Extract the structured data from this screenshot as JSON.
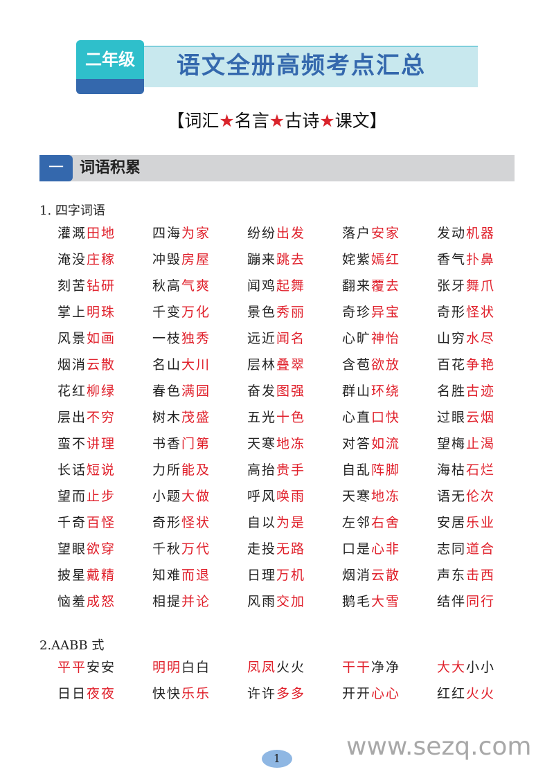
{
  "header": {
    "grade": "二年级",
    "title": "语文全册高频考点汇总",
    "subtitle_parts": [
      "【词汇",
      "★",
      "名言",
      "★",
      "古诗",
      "★",
      "课文】"
    ],
    "colors": {
      "teal": "#2fbfcb",
      "blue": "#3468ad",
      "red": "#d9232b"
    }
  },
  "section": {
    "number": "一",
    "title": "词语积累"
  },
  "four_char": {
    "heading": "1. 四字词语",
    "words": [
      [
        [
          "灌溉",
          "田地"
        ],
        [
          "四海",
          "为家"
        ],
        [
          "纷纷",
          "出发"
        ],
        [
          "落户",
          "安家"
        ],
        [
          "发动",
          "机器"
        ]
      ],
      [
        [
          "淹没",
          "庄稼"
        ],
        [
          "冲毁",
          "房屋"
        ],
        [
          "蹦来",
          "跳去"
        ],
        [
          "姹紫",
          "嫣红"
        ],
        [
          "香气",
          "扑鼻"
        ]
      ],
      [
        [
          "刻苦",
          "钻研"
        ],
        [
          "秋高",
          "气爽"
        ],
        [
          "闻鸡",
          "起舞"
        ],
        [
          "翻来",
          "覆去"
        ],
        [
          "张牙",
          "舞爪"
        ]
      ],
      [
        [
          "掌上",
          "明珠"
        ],
        [
          "千变",
          "万化"
        ],
        [
          "景色",
          "秀丽"
        ],
        [
          "奇珍",
          "异宝"
        ],
        [
          "奇形",
          "怪状"
        ]
      ],
      [
        [
          "风景",
          "如画"
        ],
        [
          "一枝",
          "独秀"
        ],
        [
          "远近",
          "闻名"
        ],
        [
          "心旷",
          "神怡"
        ],
        [
          "山穷",
          "水尽"
        ]
      ],
      [
        [
          "烟消",
          "云散"
        ],
        [
          "名山",
          "大川"
        ],
        [
          "层林",
          "叠翠"
        ],
        [
          "含苞",
          "欲放"
        ],
        [
          "百花",
          "争艳"
        ]
      ],
      [
        [
          "花红",
          "柳绿"
        ],
        [
          "春色",
          "满园"
        ],
        [
          "奋发",
          "图强"
        ],
        [
          "群山",
          "环绕"
        ],
        [
          "名胜",
          "古迹"
        ]
      ],
      [
        [
          "层出",
          "不穷"
        ],
        [
          "树木",
          "茂盛"
        ],
        [
          "五光",
          "十色"
        ],
        [
          "心直",
          "口快"
        ],
        [
          "过眼",
          "云烟"
        ]
      ],
      [
        [
          "蛮不",
          "讲理"
        ],
        [
          "书香",
          "门第"
        ],
        [
          "天寒",
          "地冻"
        ],
        [
          "对答",
          "如流"
        ],
        [
          "望梅",
          "止渴"
        ]
      ],
      [
        [
          "长话",
          "短说"
        ],
        [
          "力所",
          "能及"
        ],
        [
          "高抬",
          "贵手"
        ],
        [
          "自乱",
          "阵脚"
        ],
        [
          "海枯",
          "石烂"
        ]
      ],
      [
        [
          "望而",
          "止步"
        ],
        [
          "小题",
          "大做"
        ],
        [
          "呼风",
          "唤雨"
        ],
        [
          "天寒",
          "地冻"
        ],
        [
          "语无",
          "伦次"
        ]
      ],
      [
        [
          "千奇",
          "百怪"
        ],
        [
          "奇形",
          "怪状"
        ],
        [
          "自以",
          "为是"
        ],
        [
          "左邻",
          "右舍"
        ],
        [
          "安居",
          "乐业"
        ]
      ],
      [
        [
          "望眼",
          "欲穿"
        ],
        [
          "千秋",
          "万代"
        ],
        [
          "走投",
          "无路"
        ],
        [
          "口是",
          "心非"
        ],
        [
          "志同",
          "道合"
        ]
      ],
      [
        [
          "披星",
          "戴精"
        ],
        [
          "知难",
          "而退"
        ],
        [
          "日理",
          "万机"
        ],
        [
          "烟消",
          "云散"
        ],
        [
          "声东",
          "击西"
        ]
      ],
      [
        [
          "恼羞",
          "成怒"
        ],
        [
          "相提",
          "并论"
        ],
        [
          "风雨",
          "交加"
        ],
        [
          "鹅毛",
          "大雪"
        ],
        [
          "结伴",
          "同行"
        ]
      ]
    ]
  },
  "aabb": {
    "heading": "2.AABB 式",
    "rows": [
      [
        [
          "平平",
          "安安"
        ],
        [
          "明明",
          "白白"
        ],
        [
          "凤凤",
          "火火"
        ],
        [
          "干干",
          "净净"
        ],
        [
          "大大",
          "小小"
        ]
      ],
      [
        [
          "日日",
          "夜夜"
        ],
        [
          "快快",
          "乐乐"
        ],
        [
          "许许",
          "多多"
        ],
        [
          "开开",
          "心心"
        ],
        [
          "红红",
          "火火"
        ]
      ]
    ],
    "red_first_row": [
      true,
      false
    ]
  },
  "footer": {
    "page": "1",
    "watermark": "www.sezq.com"
  }
}
